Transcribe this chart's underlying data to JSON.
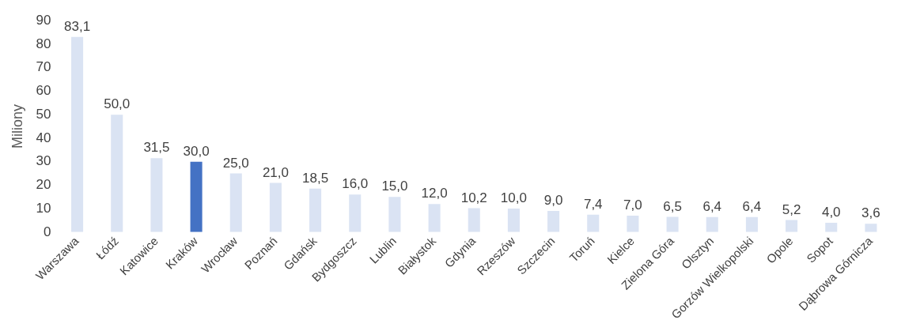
{
  "chart_data": {
    "type": "bar",
    "ylabel": "Miliony",
    "categories": [
      "Warszawa",
      "Łódź",
      "Katowice",
      "Kraków",
      "Wrocław",
      "Poznań",
      "Gdańsk",
      "Bydgoszcz",
      "Lublin",
      "Białystok",
      "Gdynia",
      "Rzeszów",
      "Szczecin",
      "Toruń",
      "Kielce",
      "Zielona Góra",
      "Olsztyn",
      "Gorzów Wielkopolski",
      "Opole",
      "Sopot",
      "Dąbrowa Górnicza"
    ],
    "values": [
      83.1,
      50.0,
      31.5,
      30.0,
      25.0,
      21.0,
      18.5,
      16.0,
      15.0,
      12.0,
      10.2,
      10.0,
      9.0,
      7.4,
      7.0,
      6.5,
      6.4,
      6.4,
      5.2,
      4.0,
      3.6
    ],
    "value_labels": [
      "83,1",
      "50,0",
      "31,5",
      "30,0",
      "25,0",
      "21,0",
      "18,5",
      "16,0",
      "15,0",
      "12,0",
      "10,2",
      "10,0",
      "9,0",
      "7,4",
      "7,0",
      "6,5",
      "6,4",
      "6,4",
      "5,2",
      "4,0",
      "3,6"
    ],
    "colors": [
      "#dae3f3",
      "#dae3f3",
      "#dae3f3",
      "#4472c4",
      "#dae3f3",
      "#dae3f3",
      "#dae3f3",
      "#dae3f3",
      "#dae3f3",
      "#dae3f3",
      "#dae3f3",
      "#dae3f3",
      "#dae3f3",
      "#dae3f3",
      "#dae3f3",
      "#dae3f3",
      "#dae3f3",
      "#dae3f3",
      "#dae3f3",
      "#dae3f3",
      "#dae3f3"
    ],
    "ylim": [
      0,
      90
    ],
    "yticks": [
      0,
      10,
      20,
      30,
      40,
      50,
      60,
      70,
      80,
      90
    ],
    "grid": false,
    "legend": false
  }
}
